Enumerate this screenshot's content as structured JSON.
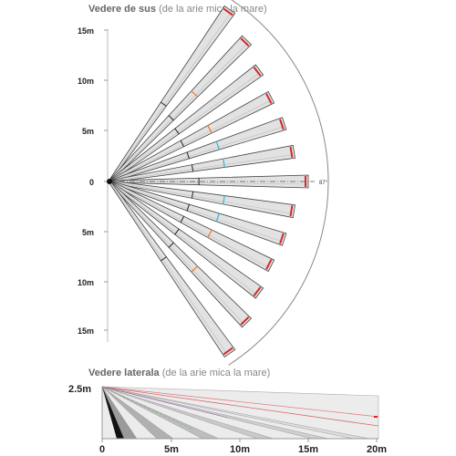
{
  "top_view": {
    "title_bold": "Vedere de sus",
    "title_rest": "(de la arie mica la mare)",
    "y_ticks": [
      "15m",
      "10m",
      "5m",
      "0",
      "5m",
      "10m",
      "15m"
    ],
    "angle_label": "87°"
  },
  "side_view": {
    "title_bold": "Vedere laterala",
    "title_rest": "(de la arie mica la mare)",
    "height_label": "2.5m",
    "x_ticks": [
      "0",
      "5m",
      "10m",
      "15m",
      "20m"
    ]
  },
  "chart_data": [
    {
      "type": "diagram",
      "title": "Vedere de sus (de la arie mica la mare)",
      "y_ticks": [
        "15m",
        "10m",
        "5m",
        "0",
        "5m",
        "10m",
        "15m"
      ],
      "coverage_angle_deg": 87,
      "beam_count": 13
    },
    {
      "type": "diagram",
      "title": "Vedere laterala (de la arie mica la mare)",
      "x_ticks": [
        "0",
        "5m",
        "10m",
        "15m",
        "20m"
      ],
      "mount_height": "2.5m"
    }
  ],
  "colors": {
    "beam_fill": "#e2e2e2",
    "beam_stroke": "#444444",
    "tip_red": "#d62828",
    "mark_cyan": "#29b6d6",
    "mark_orange": "#e8782a",
    "arc": "#888888"
  }
}
